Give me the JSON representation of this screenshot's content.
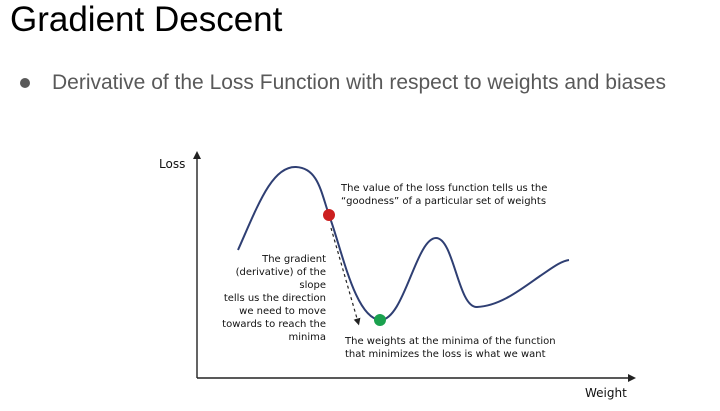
{
  "slide": {
    "title": "Gradient Descent",
    "bullet": "Derivative of the Loss Function with respect to weights and biases"
  },
  "diagram": {
    "y_axis_label": "Loss",
    "x_axis_label": "Weight",
    "annotation_top": {
      "line1": "The value of the loss function tells us the",
      "line2": "“goodness” of a particular set of weights"
    },
    "annotation_left": {
      "lines": [
        "The gradient",
        "(derivative) of the",
        "slope",
        "tells us the direction",
        "we need to move",
        "towards to reach the",
        "minima"
      ]
    },
    "annotation_bottom": {
      "line1": "The weights at the minima of the function",
      "line2": "that minimizes the loss is what we want"
    },
    "colors": {
      "curve": "#2f3f73",
      "current_point": "#cc1f1f",
      "minimum_point": "#1aa14e",
      "axis": "#222222",
      "bullet_text": "#595959"
    }
  }
}
